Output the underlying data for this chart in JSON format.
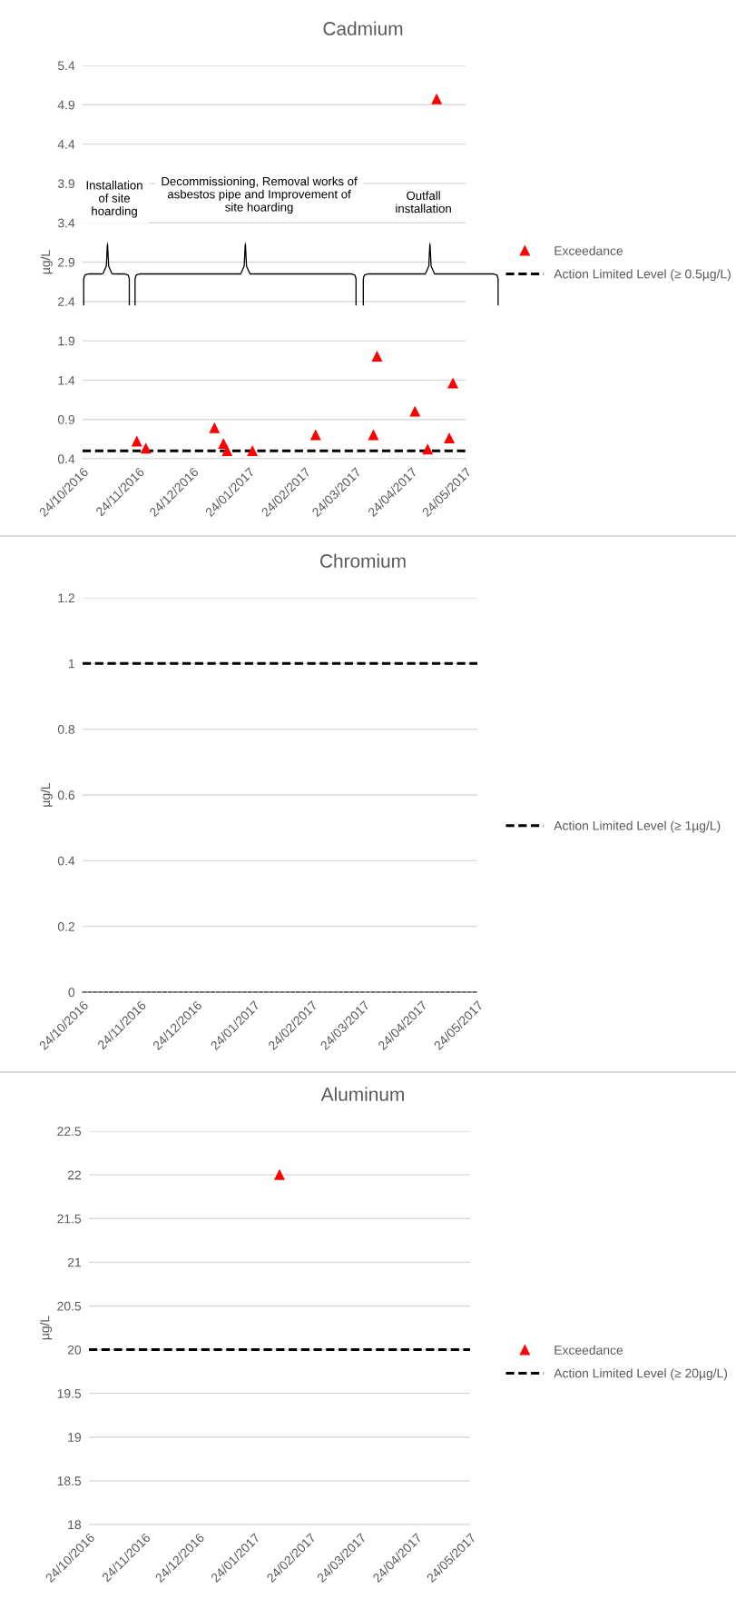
{
  "chart_data": [
    {
      "type": "scatter",
      "title": "Cadmium",
      "ylabel": "µg/L",
      "annotations": [
        "Installation of site hoarding",
        "Decommissioning, Removal works of asbestos pipe and Improvement of site hoarding",
        "Outfall installation"
      ],
      "series": [
        {
          "name": "Exceedance",
          "color": "#ff0000",
          "x": [
            "2016-11-23",
            "2016-11-28",
            "2017-01-05",
            "2017-01-10",
            "2017-01-12",
            "2017-01-26",
            "2017-03-02",
            "2017-04-03",
            "2017-04-05",
            "2017-04-26",
            "2017-05-03",
            "2017-05-08",
            "2017-05-15",
            "2017-05-17"
          ],
          "values": [
            0.62,
            0.53,
            0.79,
            0.59,
            0.5,
            0.5,
            0.7,
            0.7,
            1.7,
            1.0,
            0.52,
            4.97,
            0.66,
            1.36
          ]
        }
      ],
      "ref_lines": [
        {
          "axis": "y",
          "value": 0.5,
          "label": "Action Limited Level (≥ 0.5µg/L)",
          "color": "#000000",
          "line_style": "dashed"
        }
      ],
      "xlim": [
        "2016-10-24",
        "2017-05-24"
      ],
      "xticks": [
        {
          "value": "2016-10-24",
          "label": "24/10/2016"
        },
        {
          "value": "2016-11-24",
          "label": "24/11/2016"
        },
        {
          "value": "2016-12-24",
          "label": "24/12/2016"
        },
        {
          "value": "2017-01-24",
          "label": "24/01/2017"
        },
        {
          "value": "2017-02-24",
          "label": "24/02/2017"
        },
        {
          "value": "2017-03-24",
          "label": "24/03/2017"
        },
        {
          "value": "2017-04-24",
          "label": "24/04/2017"
        },
        {
          "value": "2017-05-24",
          "label": "24/05/2017"
        }
      ],
      "ylim": [
        0.4,
        5.4
      ],
      "yticks": [
        0.4,
        0.9,
        1.4,
        1.9,
        2.4,
        2.9,
        3.4,
        3.9,
        4.4,
        4.9,
        5.4
      ],
      "grid": "y",
      "legend": "right",
      "marker": "triangle"
    },
    {
      "type": "scatter",
      "title": "Chromium",
      "ylabel": "µg/L",
      "ref_lines": [
        {
          "axis": "y",
          "value": 1,
          "label": "Action Limited Level (≥ 1µg/L)",
          "color": "#000000",
          "line_style": "dashed"
        }
      ],
      "xlim": [
        "2016-10-24",
        "2017-05-24"
      ],
      "xticks": [
        {
          "value": "2016-10-24",
          "label": "24/10/2016"
        },
        {
          "value": "2016-11-24",
          "label": "24/11/2016"
        },
        {
          "value": "2016-12-24",
          "label": "24/12/2016"
        },
        {
          "value": "2017-01-24",
          "label": "24/01/2017"
        },
        {
          "value": "2017-02-24",
          "label": "24/02/2017"
        },
        {
          "value": "2017-03-24",
          "label": "24/03/2017"
        },
        {
          "value": "2017-04-24",
          "label": "24/04/2017"
        },
        {
          "value": "2017-05-24",
          "label": "24/05/2017"
        }
      ],
      "ylim": [
        0,
        1.2
      ],
      "yticks": [
        0,
        0.2,
        0.4,
        0.6,
        0.8,
        1,
        1.2
      ],
      "grid": "y",
      "legend": "right"
    },
    {
      "type": "scatter",
      "title": "Aluminum",
      "ylabel": "µg/L",
      "series": [
        {
          "name": "Exceedance",
          "color": "#ff0000",
          "x": [
            "2017-02-07"
          ],
          "values": [
            22
          ]
        }
      ],
      "ref_lines": [
        {
          "axis": "y",
          "value": 20,
          "label": "Action Limited Level (≥ 20µg/L)",
          "color": "#000000",
          "line_style": "dashed"
        }
      ],
      "xlim": [
        "2016-10-24",
        "2017-05-24"
      ],
      "xticks": [
        {
          "value": "2016-10-24",
          "label": "24/10/2016"
        },
        {
          "value": "2016-11-24",
          "label": "24/11/2016"
        },
        {
          "value": "2016-12-24",
          "label": "24/12/2016"
        },
        {
          "value": "2017-01-24",
          "label": "24/01/2017"
        },
        {
          "value": "2017-02-24",
          "label": "24/02/2017"
        },
        {
          "value": "2017-03-24",
          "label": "24/03/2017"
        },
        {
          "value": "2017-04-24",
          "label": "24/04/2017"
        },
        {
          "value": "2017-05-24",
          "label": "24/05/2017"
        }
      ],
      "ylim": [
        18,
        22.5
      ],
      "yticks": [
        18,
        18.5,
        19,
        19.5,
        20,
        20.5,
        21,
        21.5,
        22,
        22.5
      ],
      "grid": "y",
      "legend": "right",
      "marker": "triangle"
    }
  ]
}
